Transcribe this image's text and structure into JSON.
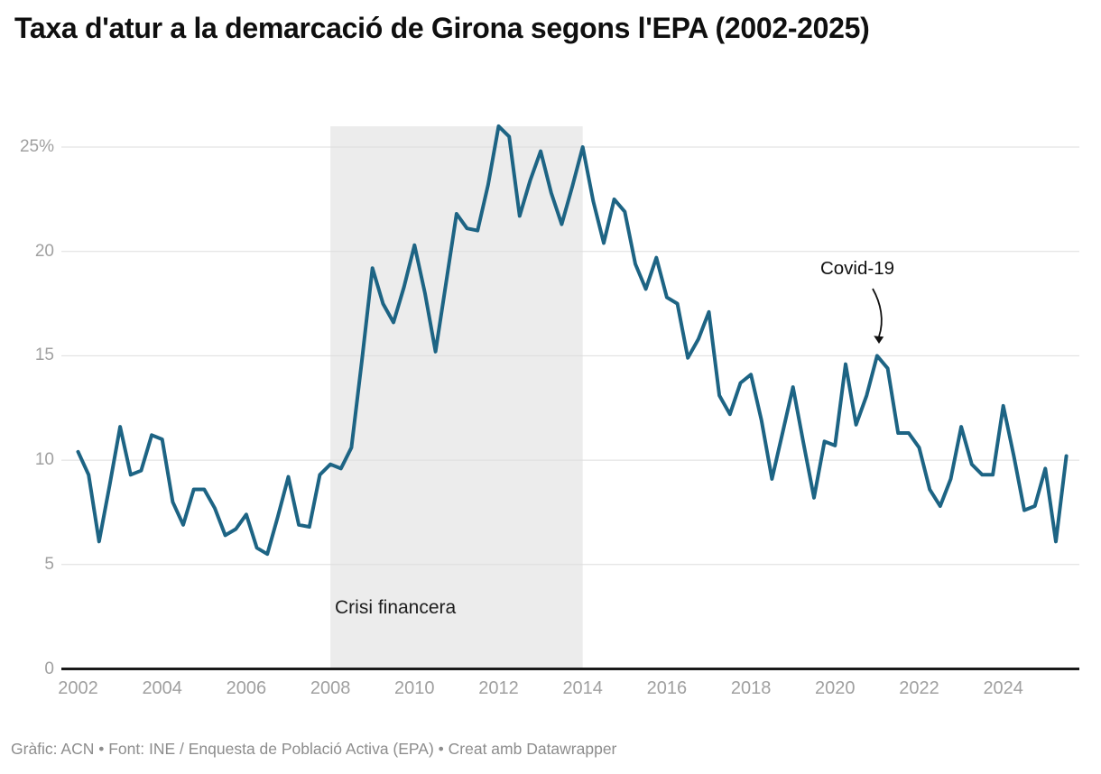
{
  "header": {
    "title": "Taxa d'atur a la demarcació de Girona segons l'EPA (2002-2025)"
  },
  "footer": {
    "text": "Gràfic: ACN • Font: INE / Enquesta de Població Activa (EPA) • Creat amb Datawrapper"
  },
  "colors": {
    "line": "#1d6484",
    "shaded_region": "#ececec",
    "gridline": "#dddddd",
    "axis_line": "#1a1a1a",
    "tick_text": "#a0a0a0",
    "footer_text": "#8d8d8d"
  },
  "chart_data": {
    "type": "line",
    "title": "Taxa d'atur a la demarcació de Girona segons l'EPA (2002-2025)",
    "unit": "%",
    "frequency": "quarterly",
    "x_start": "2002-Q1",
    "x_end": "2025-Q3",
    "ylim": [
      0,
      26
    ],
    "grid": true,
    "y_axis": {
      "ticks": [
        {
          "value": 0,
          "label": "0"
        },
        {
          "value": 5,
          "label": "5"
        },
        {
          "value": 10,
          "label": "10"
        },
        {
          "value": 15,
          "label": "15"
        },
        {
          "value": 20,
          "label": "20"
        },
        {
          "value": 25,
          "label": "25%"
        }
      ]
    },
    "x_axis": {
      "tick_years": [
        2002,
        2004,
        2006,
        2008,
        2010,
        2012,
        2014,
        2016,
        2018,
        2020,
        2022,
        2024
      ]
    },
    "shaded_region": {
      "from_year": 2008,
      "to_year": 2014,
      "label": "Crisi financera"
    },
    "annotations": [
      {
        "text": "Crisi financera"
      },
      {
        "text": "Covid-19",
        "points_to": {
          "period": "2021-Q1",
          "value": 15.0
        }
      }
    ],
    "values": [
      10.4,
      9.3,
      6.1,
      8.8,
      11.6,
      9.3,
      9.5,
      11.2,
      11.0,
      8.0,
      6.9,
      8.6,
      8.6,
      7.7,
      6.4,
      6.7,
      7.4,
      5.8,
      5.5,
      7.3,
      9.2,
      6.9,
      6.8,
      9.3,
      9.8,
      9.6,
      10.6,
      14.8,
      19.2,
      17.5,
      16.6,
      18.3,
      20.3,
      18.0,
      15.2,
      18.5,
      21.8,
      21.1,
      21.0,
      23.2,
      26.0,
      25.5,
      21.7,
      23.4,
      24.8,
      22.8,
      21.3,
      23.1,
      25.0,
      22.4,
      20.4,
      22.5,
      21.9,
      19.4,
      18.2,
      19.7,
      17.8,
      17.5,
      14.9,
      15.8,
      17.1,
      13.1,
      12.2,
      13.7,
      14.1,
      11.9,
      9.1,
      11.3,
      13.5,
      10.8,
      8.2,
      10.9,
      10.7,
      14.6,
      11.7,
      13.1,
      15.0,
      14.4,
      11.3,
      11.3,
      10.6,
      8.6,
      7.8,
      9.1,
      11.6,
      9.8,
      9.3,
      9.3,
      12.6,
      10.2,
      7.6,
      7.8,
      9.6,
      6.1,
      10.2
    ]
  }
}
